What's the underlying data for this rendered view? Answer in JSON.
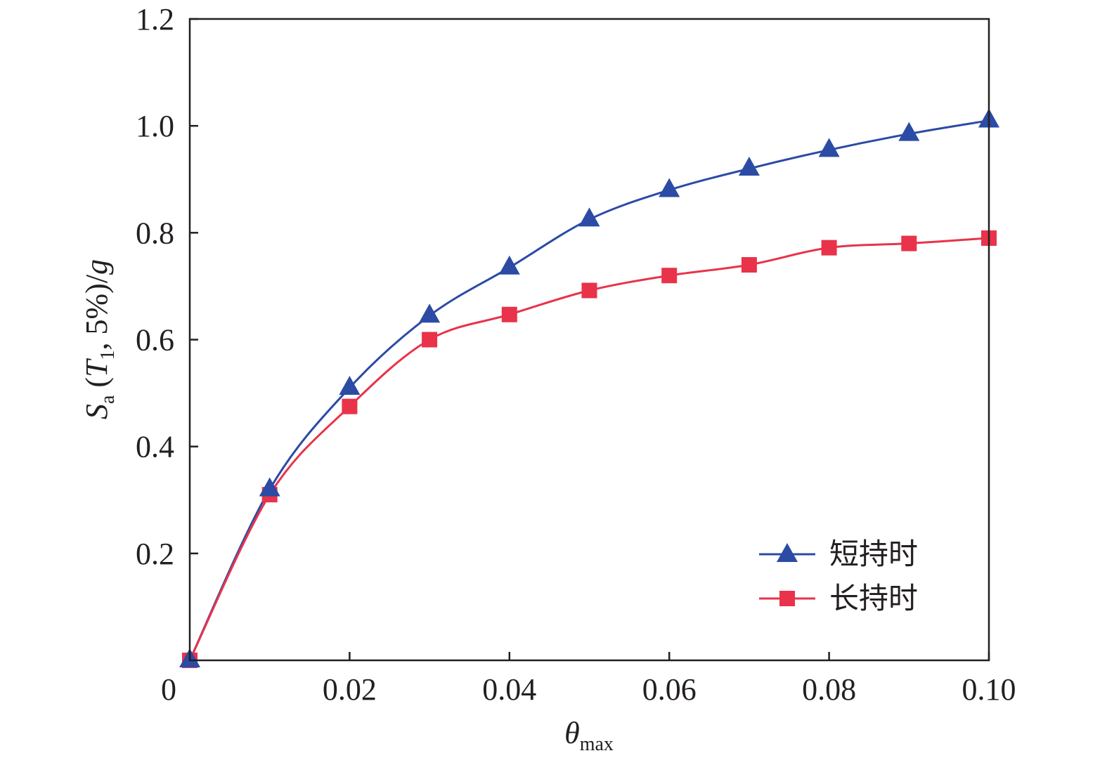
{
  "chart_data": {
    "type": "line",
    "xlabel": {
      "main": "θ",
      "sub": "max"
    },
    "ylabel": {
      "s": "S",
      "s_sub": "a",
      "open": " (",
      "t": "T",
      "t_sub": "1",
      "rest": ", 5%)/",
      "g": "g"
    },
    "xlim": [
      0,
      0.1
    ],
    "ylim": [
      0,
      1.2
    ],
    "xticks": [
      {
        "value": 0,
        "label": "0"
      },
      {
        "value": 0.02,
        "label": "0.02"
      },
      {
        "value": 0.04,
        "label": "0.04"
      },
      {
        "value": 0.06,
        "label": "0.06"
      },
      {
        "value": 0.08,
        "label": "0.08"
      },
      {
        "value": 0.1,
        "label": "0.10"
      }
    ],
    "yticks": [
      {
        "value": 0.2,
        "label": "0.2"
      },
      {
        "value": 0.4,
        "label": "0.4"
      },
      {
        "value": 0.6,
        "label": "0.6"
      },
      {
        "value": 0.8,
        "label": "0.8"
      },
      {
        "value": 1.0,
        "label": "1.0"
      },
      {
        "value": 1.2,
        "label": "1.2"
      }
    ],
    "grid": false,
    "legend_position": "bottom-right",
    "x": [
      0,
      0.01,
      0.02,
      0.03,
      0.04,
      0.05,
      0.06,
      0.07,
      0.08,
      0.09,
      0.1
    ],
    "series": [
      {
        "name": "短持时",
        "marker": "triangle",
        "color": "#2b4ba5",
        "values": [
          0.0,
          0.32,
          0.51,
          0.645,
          0.735,
          0.825,
          0.88,
          0.92,
          0.955,
          0.985,
          1.01
        ]
      },
      {
        "name": "长持时",
        "marker": "square",
        "color": "#e8334a",
        "values": [
          0.0,
          0.31,
          0.475,
          0.6,
          0.647,
          0.692,
          0.72,
          0.74,
          0.772,
          0.78,
          0.79
        ]
      }
    ]
  }
}
